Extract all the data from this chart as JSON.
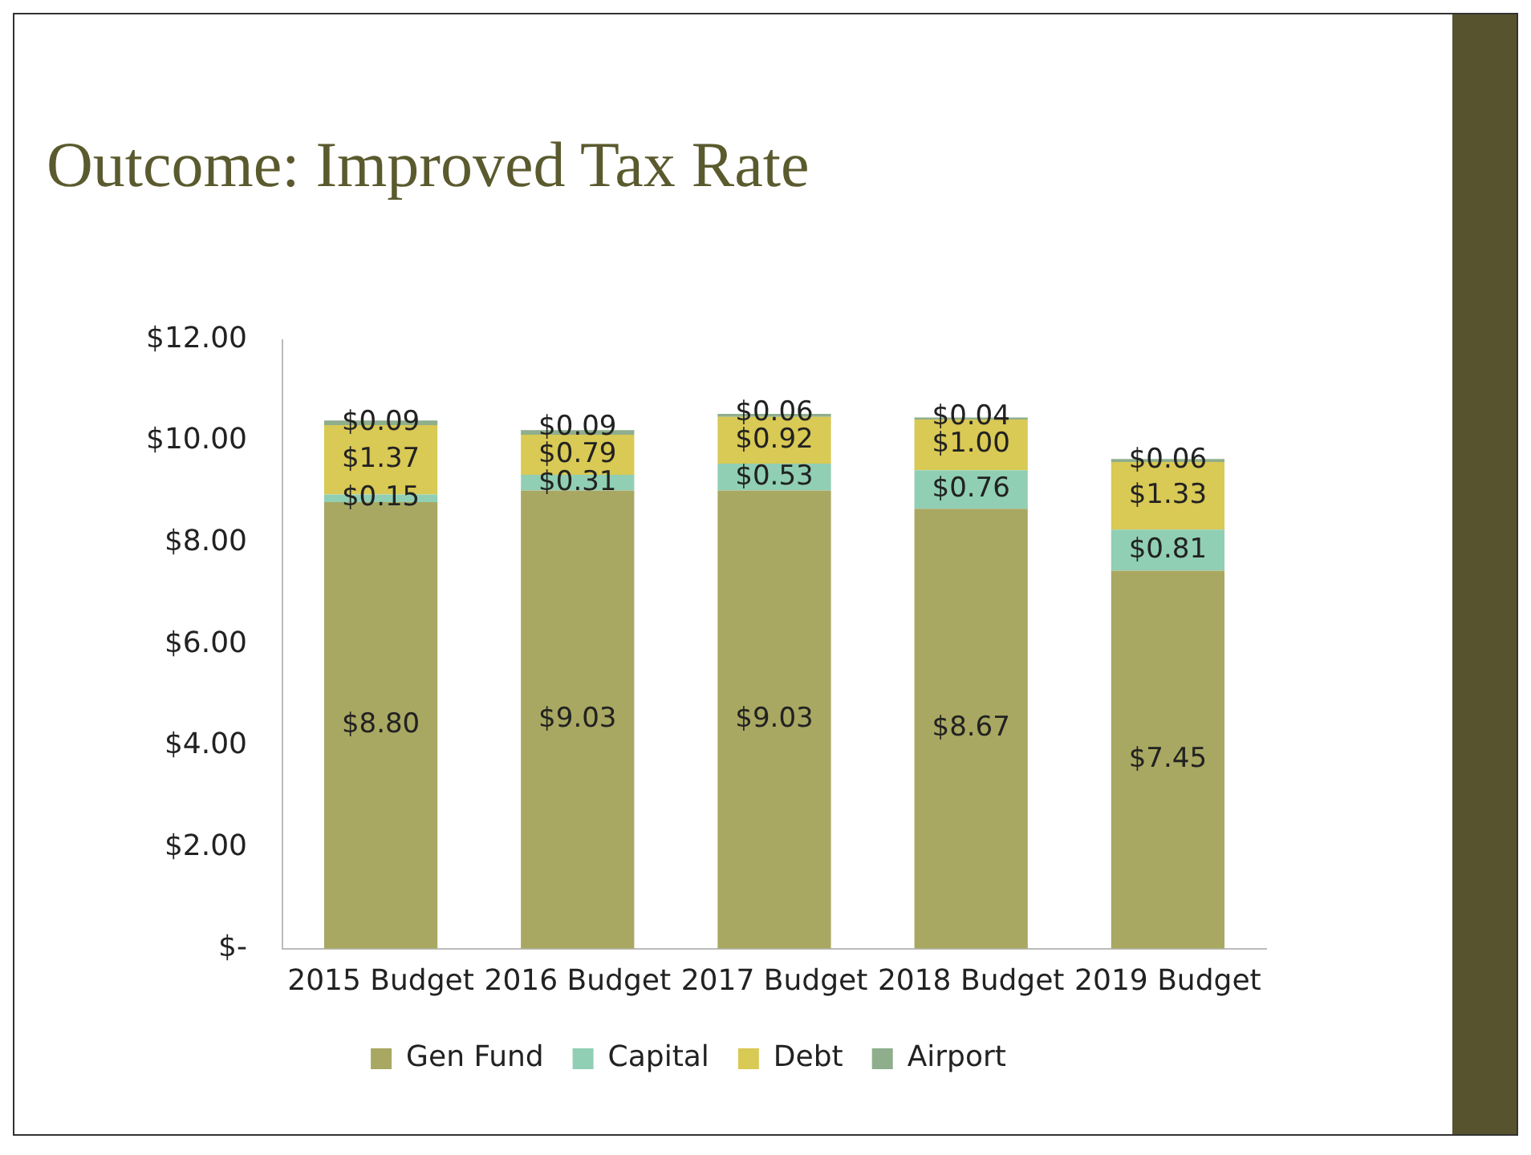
{
  "chart_data": {
    "type": "bar",
    "title": "Outcome: Improved Tax Rate",
    "stacked": true,
    "categories": [
      "2015 Budget",
      "2016 Budget",
      "2017 Budget",
      "2018 Budget",
      "2019 Budget"
    ],
    "series": [
      {
        "name": "Gen Fund",
        "color": "#a9a862",
        "values": [
          8.8,
          9.03,
          9.03,
          8.67,
          7.45
        ],
        "value_labels": [
          "$8.80",
          "$9.03",
          "$9.03",
          "$8.67",
          "$7.45"
        ]
      },
      {
        "name": "Capital",
        "color": "#90cfb4",
        "values": [
          0.15,
          0.31,
          0.53,
          0.76,
          0.81
        ],
        "value_labels": [
          "$0.15",
          "$0.31",
          "$0.53",
          "$0.76",
          "$0.81"
        ]
      },
      {
        "name": "Debt",
        "color": "#d9c955",
        "values": [
          1.37,
          0.79,
          0.92,
          1.0,
          1.33
        ],
        "value_labels": [
          "$1.37",
          "$0.79",
          "$0.92",
          "$1.00",
          "$1.33"
        ]
      },
      {
        "name": "Airport",
        "color": "#8fae8c",
        "values": [
          0.09,
          0.09,
          0.06,
          0.04,
          0.06
        ],
        "value_labels": [
          "$0.09",
          "$0.09",
          "$0.06",
          "$0.04",
          "$0.06"
        ]
      }
    ],
    "ylim": [
      0,
      12
    ],
    "yticks": [
      {
        "value": 0,
        "label": "$-"
      },
      {
        "value": 2,
        "label": "$2.00"
      },
      {
        "value": 4,
        "label": "$4.00"
      },
      {
        "value": 6,
        "label": "$6.00"
      },
      {
        "value": 8,
        "label": "$8.00"
      },
      {
        "value": 10,
        "label": "$10.00"
      },
      {
        "value": 12,
        "label": "$12.00"
      }
    ],
    "grid": false,
    "legend": "bottom"
  }
}
